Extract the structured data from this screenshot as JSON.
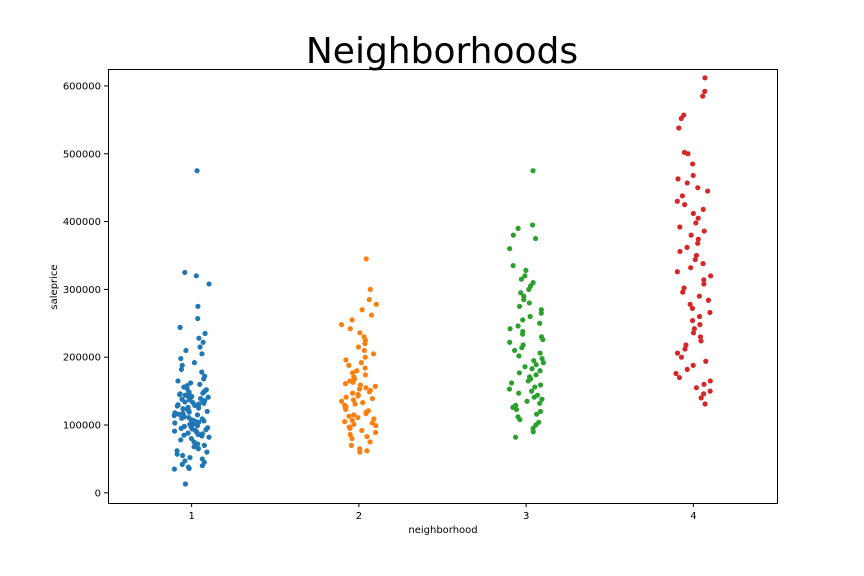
{
  "chart_data": {
    "type": "scatter",
    "title": "Neighborhoods",
    "xlabel": "neighborhood",
    "ylabel": "saleprice",
    "categories": [
      "1",
      "2",
      "3",
      "4"
    ],
    "yticks": [
      "0",
      "100000",
      "200000",
      "300000",
      "400000",
      "500000",
      "600000"
    ],
    "ylim": [
      -15000,
      625000
    ],
    "grid": false,
    "series": [
      {
        "color": "#1f77b4",
        "values": [
          475000,
          325000,
          320000,
          308000,
          275000,
          257000,
          244000,
          235000,
          228000,
          222000,
          215000,
          210000,
          205000,
          198000,
          192000,
          188000,
          182000,
          178000,
          172000,
          168000,
          165000,
          162000,
          160000,
          158000,
          156000,
          154000,
          152000,
          150000,
          149000,
          148000,
          147000,
          146000,
          145000,
          144000,
          143000,
          142000,
          141000,
          140000,
          139000,
          138000,
          137000,
          136000,
          135000,
          134000,
          133000,
          132000,
          131000,
          130000,
          129000,
          128000,
          127000,
          126000,
          125000,
          124000,
          123000,
          122000,
          121000,
          120000,
          119000,
          118000,
          117000,
          116000,
          115000,
          114000,
          113000,
          112000,
          111000,
          110000,
          109000,
          108000,
          107000,
          106000,
          105000,
          104000,
          103000,
          102000,
          101000,
          100000,
          99000,
          98000,
          97000,
          96000,
          95000,
          94000,
          93000,
          92000,
          91000,
          90000,
          89000,
          88000,
          87000,
          86000,
          85000,
          84000,
          82000,
          80000,
          78000,
          75000,
          72000,
          70000,
          68000,
          65000,
          62000,
          60000,
          57000,
          55000,
          52000,
          50000,
          47000,
          45000,
          42000,
          40000,
          38000,
          36000,
          35000,
          13000
        ]
      },
      {
        "color": "#ff7f0e",
        "values": [
          345000,
          300000,
          285000,
          278000,
          270000,
          262000,
          255000,
          248000,
          242000,
          236000,
          230000,
          225000,
          220000,
          215000,
          210000,
          205000,
          200000,
          196000,
          192000,
          188000,
          184000,
          180000,
          177000,
          174000,
          171000,
          168000,
          165000,
          163000,
          161000,
          159000,
          157000,
          155000,
          153000,
          151000,
          149000,
          147000,
          145000,
          143000,
          141000,
          139000,
          137000,
          135000,
          133000,
          131000,
          129000,
          127000,
          125000,
          123000,
          121000,
          119000,
          117000,
          115000,
          113000,
          111000,
          109000,
          107000,
          105000,
          103000,
          101000,
          99000,
          97000,
          95000,
          92000,
          89000,
          86000,
          83000,
          80000,
          75000,
          70000,
          65000,
          62000,
          60000
        ]
      },
      {
        "color": "#2ca02c",
        "values": [
          475000,
          395000,
          390000,
          380000,
          375000,
          360000,
          335000,
          328000,
          320000,
          315000,
          310000,
          305000,
          300000,
          295000,
          290000,
          285000,
          280000,
          275000,
          270000,
          265000,
          260000,
          255000,
          250000,
          246000,
          242000,
          238000,
          234000,
          230000,
          226000,
          222000,
          218000,
          214000,
          210000,
          206000,
          202000,
          198000,
          195000,
          192000,
          189000,
          186000,
          183000,
          180000,
          177000,
          174000,
          171000,
          168000,
          165000,
          162000,
          159000,
          156000,
          153000,
          150000,
          147000,
          144000,
          141000,
          138000,
          135000,
          132000,
          129000,
          126000,
          123000,
          120000,
          116000,
          112000,
          108000,
          104000,
          100000,
          95000,
          90000,
          82000
        ]
      },
      {
        "color": "#d62728",
        "values": [
          612000,
          592000,
          585000,
          557000,
          552000,
          538000,
          502000,
          500000,
          485000,
          468000,
          463000,
          457000,
          450000,
          445000,
          438000,
          430000,
          425000,
          418000,
          412000,
          405000,
          398000,
          392000,
          386000,
          380000,
          374000,
          368000,
          362000,
          356000,
          350000,
          344000,
          338000,
          332000,
          326000,
          320000,
          314000,
          308000,
          302000,
          296000,
          290000,
          284000,
          278000,
          272000,
          266000,
          260000,
          254000,
          248000,
          242000,
          236000,
          230000,
          224000,
          218000,
          212000,
          206000,
          200000,
          194000,
          188000,
          182000,
          176000,
          170000,
          165000,
          160000,
          155000,
          150000,
          146000,
          140000,
          131000
        ]
      }
    ]
  }
}
